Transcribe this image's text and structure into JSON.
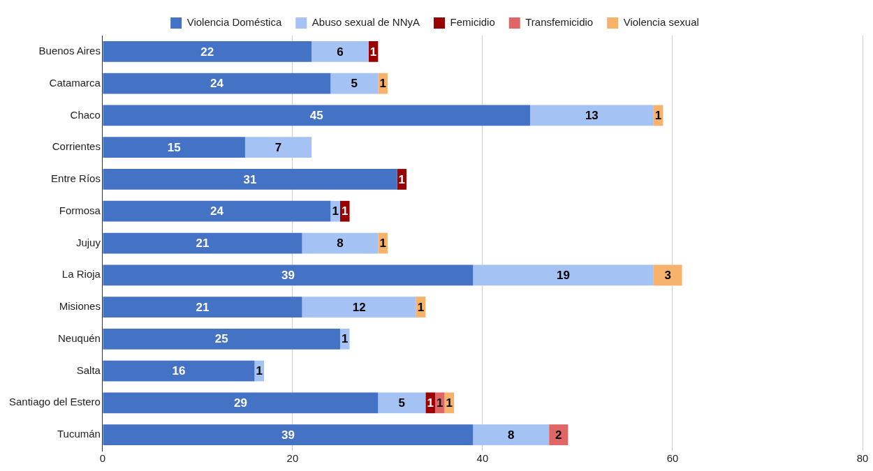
{
  "chart_data": {
    "type": "bar",
    "orientation": "horizontal",
    "stacked": true,
    "data_labels": true,
    "grid": "x",
    "legend": "top",
    "categories": [
      "Buenos Aires",
      "Catamarca",
      "Chaco",
      "Corrientes",
      "Entre Ríos",
      "Formosa",
      "Jujuy",
      "La Rioja",
      "Misiones",
      "Neuquén",
      "Salta",
      "Santiago del Estero",
      "Tucumán"
    ],
    "xlim": [
      0,
      80
    ],
    "xticks": [
      0,
      20,
      40,
      60,
      80
    ],
    "series": [
      {
        "name": "Violencia Doméstica",
        "color": "#4472c4",
        "values": [
          22,
          24,
          45,
          15,
          31,
          24,
          21,
          39,
          21,
          25,
          16,
          29,
          39
        ]
      },
      {
        "name": "Abuso sexual de NNyA",
        "color": "#a4c2f4",
        "values": [
          6,
          5,
          13,
          7,
          null,
          1,
          8,
          19,
          12,
          1,
          1,
          5,
          8
        ]
      },
      {
        "name": "Femicidio",
        "color": "#990000",
        "values": [
          1,
          null,
          null,
          null,
          1,
          1,
          null,
          null,
          null,
          null,
          null,
          1,
          null
        ]
      },
      {
        "name": "Transfemicidio",
        "color": "#e06666",
        "values": [
          null,
          null,
          null,
          null,
          null,
          null,
          null,
          null,
          null,
          null,
          null,
          1,
          2
        ]
      },
      {
        "name": "Violencia sexual",
        "color": "#f6b26b",
        "values": [
          null,
          1,
          1,
          null,
          null,
          null,
          1,
          3,
          1,
          null,
          null,
          1,
          null
        ]
      }
    ]
  }
}
